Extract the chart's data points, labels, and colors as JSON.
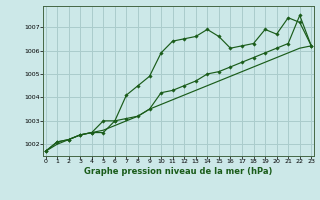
{
  "background_color": "#cce8e8",
  "grid_color": "#aacccc",
  "line_color": "#1a5c1a",
  "marker_color": "#1a5c1a",
  "xlabel": "Graphe pression niveau de la mer (hPa)",
  "xlabel_fontsize": 6,
  "xlim_min": -0.2,
  "xlim_max": 23.2,
  "ylim_min": 1001.5,
  "ylim_max": 1007.9,
  "yticks": [
    1002,
    1003,
    1004,
    1005,
    1006,
    1007
  ],
  "xticks": [
    0,
    1,
    2,
    3,
    4,
    5,
    6,
    7,
    8,
    9,
    10,
    11,
    12,
    13,
    14,
    15,
    16,
    17,
    18,
    19,
    20,
    21,
    22,
    23
  ],
  "series1": [
    1001.7,
    1002.1,
    1002.2,
    1002.4,
    1002.5,
    1002.5,
    1003.0,
    1004.1,
    1004.5,
    1004.9,
    1005.9,
    1006.4,
    1006.5,
    1006.6,
    1006.9,
    1006.6,
    1006.1,
    1006.2,
    1006.3,
    1006.9,
    1006.7,
    1007.4,
    1007.2,
    1006.2
  ],
  "series2": [
    1001.7,
    1002.1,
    1002.2,
    1002.4,
    1002.5,
    1003.0,
    1003.0,
    1003.1,
    1003.2,
    1003.5,
    1004.2,
    1004.3,
    1004.5,
    1004.7,
    1005.0,
    1005.1,
    1005.3,
    1005.5,
    1005.7,
    1005.9,
    1006.1,
    1006.3,
    1007.5,
    1006.2
  ],
  "series3": [
    1001.7,
    1002.0,
    1002.2,
    1002.4,
    1002.5,
    1002.6,
    1002.8,
    1003.0,
    1003.2,
    1003.5,
    1003.7,
    1003.9,
    1004.1,
    1004.3,
    1004.5,
    1004.7,
    1004.9,
    1005.1,
    1005.3,
    1005.5,
    1005.7,
    1005.9,
    1006.1,
    1006.2
  ]
}
